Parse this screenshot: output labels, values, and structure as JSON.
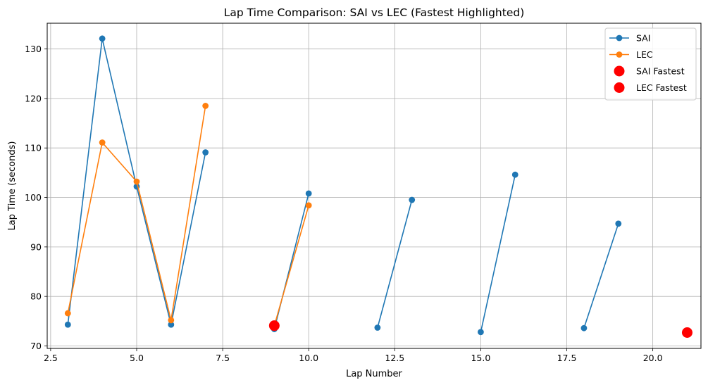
{
  "chart_data": {
    "type": "line",
    "title": "Lap Time Comparison: SAI vs LEC (Fastest Highlighted)",
    "xlabel": "Lap Number",
    "ylabel": "Lap Time (seconds)",
    "xlim": [
      2.4,
      21.4
    ],
    "ylim": [
      69.5,
      135.2
    ],
    "xticks": [
      2.5,
      5.0,
      7.5,
      10.0,
      12.5,
      15.0,
      17.5,
      20.0
    ],
    "xtick_labels": [
      "2.5",
      "5.0",
      "7.5",
      "10.0",
      "12.5",
      "15.0",
      "17.5",
      "20.0"
    ],
    "yticks": [
      70,
      80,
      90,
      100,
      110,
      120,
      130
    ],
    "ytick_labels": [
      "70",
      "80",
      "90",
      "100",
      "110",
      "120",
      "130"
    ],
    "grid": true,
    "legend_position": "top-right",
    "series": [
      {
        "name": "SAI",
        "color": "#1f77b4",
        "segments": [
          [
            [
              3,
              74.3
            ],
            [
              4,
              132.1
            ],
            [
              5,
              102.2
            ],
            [
              6,
              74.3
            ],
            [
              7,
              109.1
            ]
          ],
          [
            [
              9,
              73.4
            ],
            [
              10,
              100.8
            ]
          ],
          [
            [
              12,
              73.7
            ],
            [
              13,
              99.5
            ]
          ],
          [
            [
              15,
              72.8
            ],
            [
              16,
              104.6
            ]
          ],
          [
            [
              18,
              73.6
            ],
            [
              19,
              94.7
            ]
          ],
          [
            [
              21,
              72.7
            ]
          ]
        ]
      },
      {
        "name": "LEC",
        "color": "#ff7f0e",
        "segments": [
          [
            [
              3,
              76.6
            ],
            [
              4,
              111.1
            ],
            [
              5,
              103.2
            ],
            [
              6,
              75.2
            ],
            [
              7,
              118.5
            ]
          ],
          [
            [
              9,
              74.1
            ],
            [
              10,
              98.4
            ]
          ]
        ]
      }
    ],
    "highlights": [
      {
        "name": "SAI Fastest",
        "color": "#ff0000",
        "x": 21,
        "y": 72.7
      },
      {
        "name": "LEC Fastest",
        "color": "#ff0000",
        "x": 9,
        "y": 74.1
      }
    ]
  }
}
